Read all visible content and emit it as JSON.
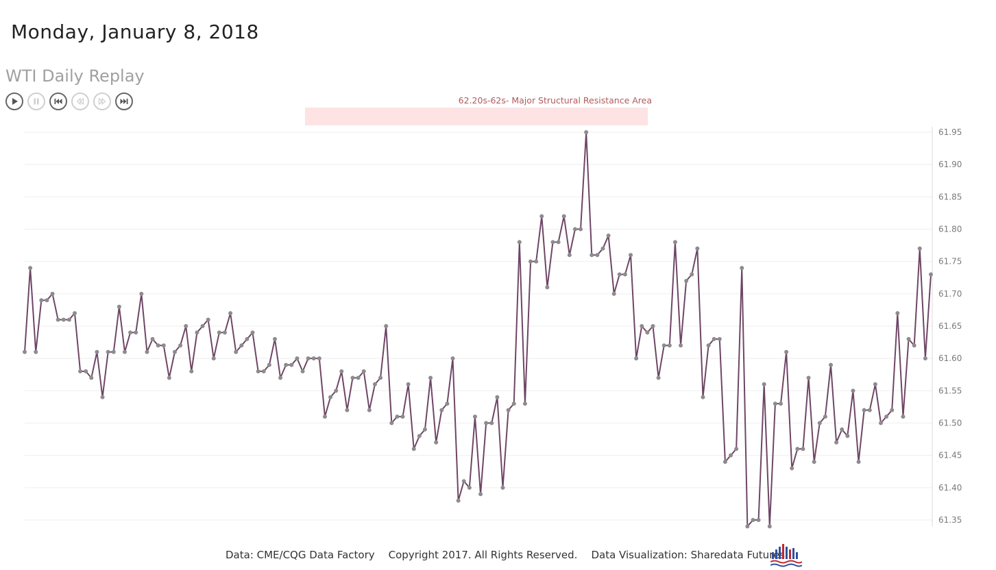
{
  "page": {
    "date_title": "Monday, January 8, 2018",
    "replay_title": "WTI Daily Replay"
  },
  "controls": [
    {
      "name": "play-button",
      "icon": "play-icon",
      "enabled": true
    },
    {
      "name": "pause-button",
      "icon": "pause-icon",
      "enabled": false
    },
    {
      "name": "skip-to-start-button",
      "icon": "skip-start-icon",
      "enabled": true
    },
    {
      "name": "step-back-button",
      "icon": "step-back-icon",
      "enabled": false
    },
    {
      "name": "step-forward-button",
      "icon": "step-forward-icon",
      "enabled": false
    },
    {
      "name": "skip-to-end-button",
      "icon": "skip-end-icon",
      "enabled": true
    }
  ],
  "footer": {
    "source": "Data: CME/CQG Data Factory",
    "copyright": "Copyright 2017. All Rights Reserved.",
    "credit": "Data Visualization: Sharedata Futures"
  },
  "colors": {
    "line": "#6e4565",
    "marker": "#8c8c8c",
    "band_fill": "#fde3e3",
    "band_text": "#b05a5a",
    "grid": "#eeeeee",
    "axis_text": "#7a7a7a"
  },
  "chart_data": {
    "type": "line",
    "title": "",
    "xlabel": "",
    "ylabel": "",
    "ylim": [
      61.35,
      61.95
    ],
    "yticks": [
      "61.35",
      "61.40",
      "61.45",
      "61.50",
      "61.55",
      "61.60",
      "61.65",
      "61.70",
      "61.75",
      "61.80",
      "61.85",
      "61.90",
      "61.95"
    ],
    "y_axis_position": "right",
    "grid": true,
    "annotation": {
      "label": "62.20s-62s- Major Structural Resistance Area",
      "type": "band"
    },
    "series": [
      {
        "values": [
          61.61,
          61.74,
          61.61,
          61.69,
          61.69,
          61.7,
          61.66,
          61.66,
          61.66,
          61.67,
          61.58,
          61.58,
          61.57,
          61.61,
          61.54,
          61.61,
          61.61,
          61.68,
          61.61,
          61.64,
          61.64,
          61.7,
          61.61,
          61.63,
          61.62,
          61.62,
          61.57,
          61.61,
          61.62,
          61.65,
          61.58,
          61.64,
          61.65,
          61.66,
          61.6,
          61.64,
          61.64,
          61.67,
          61.61,
          61.62,
          61.63,
          61.64,
          61.58,
          61.58,
          61.59,
          61.63,
          61.57,
          61.59,
          61.59,
          61.6,
          61.58,
          61.6,
          61.6,
          61.6,
          61.51,
          61.54,
          61.55,
          61.58,
          61.52,
          61.57,
          61.57,
          61.58,
          61.52,
          61.56,
          61.57,
          61.65,
          61.5,
          61.51,
          61.51,
          61.56,
          61.46,
          61.48,
          61.49,
          61.57,
          61.47,
          61.52,
          61.53,
          61.6,
          61.38,
          61.41,
          61.4,
          61.51,
          61.39,
          61.5,
          61.5,
          61.54,
          61.4,
          61.52,
          61.53,
          61.78,
          61.53,
          61.75,
          61.75,
          61.82,
          61.71,
          61.78,
          61.78,
          61.82,
          61.76,
          61.8,
          61.8,
          61.95,
          61.76,
          61.76,
          61.77,
          61.79,
          61.7,
          61.73,
          61.73,
          61.76,
          61.6,
          61.65,
          61.64,
          61.65,
          61.57,
          61.62,
          61.62,
          61.78,
          61.62,
          61.72,
          61.73,
          61.77,
          61.54,
          61.62,
          61.63,
          61.63,
          61.44,
          61.45,
          61.46,
          61.74,
          61.34,
          61.35,
          61.35,
          61.56,
          61.34,
          61.53,
          61.53,
          61.61,
          61.43,
          61.46,
          61.46,
          61.57,
          61.44,
          61.5,
          61.51,
          61.59,
          61.47,
          61.49,
          61.48,
          61.55,
          61.44,
          61.52,
          61.52,
          61.56,
          61.5,
          61.51,
          61.52,
          61.67,
          61.51,
          61.63,
          61.62,
          61.77,
          61.6,
          61.73
        ]
      }
    ]
  }
}
